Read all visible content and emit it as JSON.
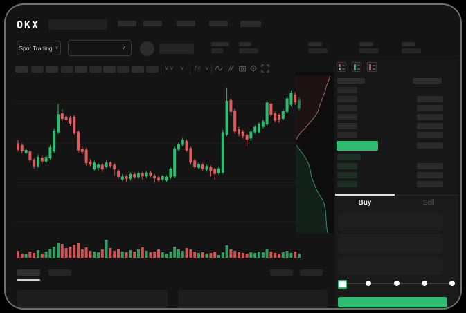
{
  "brand": {
    "logo": "OKX"
  },
  "glyphs": {
    "chevron": "∨",
    "double_chevron": "∨∨",
    "indicator_fx": "ƒx"
  },
  "nav": {
    "market_selector_label": "Spot Trading"
  },
  "trade_form": {
    "buy_tab": "Buy",
    "sell_tab": "Sell",
    "active_tab": "Buy",
    "input_count": 3,
    "slider_stops": 5
  },
  "order_book": {
    "view_icons": [
      "book-combined-icon",
      "book-bids-icon",
      "book-asks-icon"
    ],
    "ask_rows": 6,
    "ask_right_from": 1,
    "bid_rows": 4,
    "bid_right_from": 1
  },
  "colors": {
    "up": "#2ebd70",
    "down": "#e05c5c",
    "volume_up": "#2f9e60",
    "volume_down": "#cf5353",
    "accent_green": "#2ebd70",
    "ask_depth_fill": "rgba(180,80,80,0.10)",
    "ask_depth_line": "#a86868",
    "bid_depth_fill": "rgba(46,160,100,0.13)",
    "bid_depth_line": "#3f8f66",
    "bid_row_fill": "#1d2f24",
    "window_bg": "#141414"
  },
  "chart_data": {
    "type": "candlestick",
    "title": "",
    "xlabel": "",
    "ylabel": "",
    "note": "stylized trading chart without visible axis labels; OHLC normalized to 0-100 price scale, volume in px heights",
    "ylim": [
      0,
      100
    ],
    "grid": true,
    "candles": [
      [
        59,
        55,
        61,
        54
      ],
      [
        58,
        54,
        59,
        52.5
      ],
      [
        53,
        54.8,
        56,
        52
      ],
      [
        54,
        48,
        55,
        46.5
      ],
      [
        48.5,
        44.5,
        49.5,
        43
      ],
      [
        44.5,
        50.5,
        52,
        43.5
      ],
      [
        50,
        47.5,
        51.5,
        46
      ],
      [
        47.5,
        50.5,
        51.5,
        46.5
      ],
      [
        49.5,
        56.5,
        58,
        48.5
      ],
      [
        54,
        67,
        68.5,
        53
      ],
      [
        66,
        77.5,
        84,
        65
      ],
      [
        78,
        74.5,
        80.5,
        73
      ],
      [
        76,
        73.8,
        77.5,
        72.5
      ],
      [
        75.2,
        71.5,
        76.5,
        70
      ],
      [
        76,
        65.5,
        77,
        64.5
      ],
      [
        66.5,
        54.5,
        67.5,
        53
      ],
      [
        55.5,
        53.5,
        57,
        52
      ],
      [
        55,
        46.5,
        56,
        45
      ],
      [
        47.5,
        45.5,
        49,
        44.5
      ],
      [
        42.5,
        46.8,
        48,
        41.5
      ],
      [
        43.5,
        45.5,
        46.5,
        42
      ],
      [
        45.5,
        42.5,
        46.5,
        41
      ],
      [
        44,
        46.8,
        48,
        43
      ],
      [
        46.8,
        44.6,
        47.5,
        43.5
      ],
      [
        45.5,
        42.5,
        46.5,
        38.5
      ],
      [
        41.5,
        37.8,
        42.5,
        36.5
      ],
      [
        36,
        38,
        39.5,
        35
      ],
      [
        38,
        36.5,
        39,
        34.5
      ],
      [
        36.5,
        39.5,
        40.5,
        35.5
      ],
      [
        39.5,
        37.5,
        40.5,
        36.5
      ],
      [
        37.5,
        40,
        41,
        36.5
      ],
      [
        40,
        38,
        41,
        36
      ],
      [
        38,
        40.5,
        41.5,
        37
      ],
      [
        40.5,
        38.5,
        41.5,
        37.5
      ],
      [
        38.5,
        36.8,
        39.5,
        34
      ],
      [
        37.5,
        35.5,
        38.5,
        34.5
      ],
      [
        36,
        38.2,
        39,
        35
      ],
      [
        35.5,
        37.8,
        38.7,
        34.5
      ],
      [
        37.5,
        43,
        44,
        36.5
      ],
      [
        38,
        55.8,
        57,
        37
      ],
      [
        55,
        58.5,
        59.5,
        54
      ],
      [
        58,
        61.3,
        62.5,
        57
      ],
      [
        60.4,
        54.5,
        61.5,
        53.5
      ],
      [
        56,
        46.8,
        57,
        45.5
      ],
      [
        48,
        44.1,
        49,
        43
      ],
      [
        43.5,
        45.9,
        47,
        42.5
      ],
      [
        45.5,
        42.8,
        46.5,
        41.5
      ],
      [
        42.3,
        44.6,
        45.5,
        41
      ],
      [
        44.1,
        41.4,
        45,
        38
      ],
      [
        42.8,
        39.6,
        43.5,
        36
      ],
      [
        40,
        43.2,
        44.5,
        39
      ],
      [
        40.5,
        66,
        67.5,
        39.5
      ],
      [
        64.5,
        86,
        94,
        63.5
      ],
      [
        86.5,
        79,
        88,
        77
      ],
      [
        80,
        66.4,
        81,
        65
      ],
      [
        68,
        64.9,
        69.5,
        63.5
      ],
      [
        66.4,
        63.5,
        67.5,
        62
      ],
      [
        64.4,
        61.3,
        65.5,
        57
      ],
      [
        62,
        66.5,
        67.5,
        60.5
      ],
      [
        66,
        69.5,
        70.5,
        65
      ],
      [
        66,
        71.5,
        72.5,
        65.5
      ],
      [
        69.5,
        73,
        74,
        68.5
      ],
      [
        71,
        85,
        86.5,
        70
      ],
      [
        84.3,
        77,
        85.5,
        76
      ],
      [
        78,
        73.5,
        79,
        72.5
      ],
      [
        77,
        74,
        78,
        72
      ],
      [
        74.5,
        79.5,
        81,
        73.5
      ],
      [
        79,
        87.5,
        89,
        78
      ],
      [
        83.5,
        91,
        92.5,
        82.5
      ],
      [
        90,
        85,
        91.5,
        83.5
      ],
      [
        81,
        86.5,
        88,
        80
      ]
    ],
    "volume": [
      10,
      6,
      5,
      9,
      7,
      11,
      6,
      9,
      13,
      16,
      22,
      20,
      14,
      16,
      19,
      21,
      12,
      15,
      10,
      9,
      8,
      12,
      26,
      14,
      10,
      13,
      9,
      8,
      11,
      9,
      12,
      15,
      10,
      8,
      9,
      12,
      8,
      6,
      9,
      16,
      12,
      10,
      14,
      12,
      9,
      7,
      8,
      6,
      7,
      9,
      4,
      8,
      18,
      12,
      10,
      8,
      7,
      6,
      8,
      7,
      9,
      8,
      13,
      9,
      7,
      5,
      8,
      10,
      7,
      9,
      6
    ],
    "depth": {
      "asks_curve": [
        [
          50,
          6
        ],
        [
          47,
          14
        ],
        [
          44,
          22
        ],
        [
          42,
          30
        ],
        [
          38,
          40
        ],
        [
          35,
          48
        ],
        [
          32,
          58
        ],
        [
          27,
          66
        ],
        [
          20,
          74
        ],
        [
          13,
          82
        ],
        [
          7,
          88
        ],
        [
          3,
          94
        ],
        [
          1,
          98
        ]
      ],
      "bids_curve": [
        [
          1,
          106
        ],
        [
          5,
          112
        ],
        [
          10,
          118
        ],
        [
          15,
          126
        ],
        [
          19,
          134
        ],
        [
          21,
          142
        ],
        [
          23,
          152
        ],
        [
          26,
          160
        ],
        [
          29,
          168
        ],
        [
          33,
          176
        ],
        [
          37,
          182
        ],
        [
          41,
          190
        ],
        [
          43,
          200
        ],
        [
          44,
          214
        ],
        [
          45,
          226
        ],
        [
          46,
          233
        ]
      ]
    }
  }
}
